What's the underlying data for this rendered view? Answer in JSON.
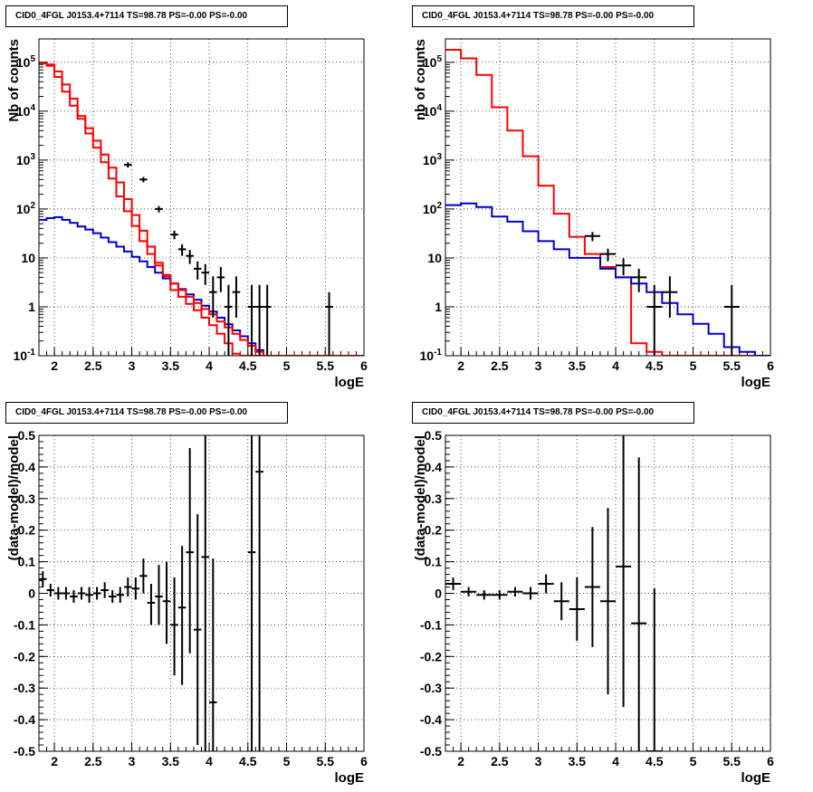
{
  "chart_data": [
    {
      "panel": "top-left",
      "type": "line",
      "title": "CID0_4FGL J0153.4+7114 TS=98.78 PS=-0.00 PS=-0.00",
      "xlabel": "logE",
      "ylabel": "Nb of counts",
      "xlim": [
        1.8,
        6.0
      ],
      "ylim": [
        0.1,
        300000
      ],
      "ylog": true,
      "grid": true,
      "xticks": [
        "2",
        "2.5",
        "3",
        "3.5",
        "4",
        "4.5",
        "5",
        "5.5",
        "6"
      ],
      "yticks": [
        "10^-1",
        "1",
        "10",
        "10^2",
        "10^3",
        "10^4",
        "10^5"
      ],
      "bin_edges": [
        1.8,
        1.9,
        2.0,
        2.1,
        2.2,
        2.3,
        2.4,
        2.5,
        2.6,
        2.7,
        2.8,
        2.9,
        3.0,
        3.1,
        3.2,
        3.3,
        3.4,
        3.5,
        3.6,
        3.7,
        3.8,
        3.9,
        4.0,
        4.1,
        4.2,
        4.3,
        4.4,
        4.5,
        4.6,
        4.7,
        4.8,
        4.9,
        5.0,
        5.1,
        5.2,
        5.3,
        5.4,
        5.5,
        5.6,
        5.7,
        5.8,
        5.9,
        6.0
      ],
      "series": [
        {
          "color": "#ff0000",
          "values": [
            95000,
            90000,
            65000,
            35000,
            18000,
            8000,
            4500,
            2500,
            1300,
            700,
            350,
            160,
            75,
            36,
            17,
            8,
            4.2,
            2.2,
            1.6,
            1.15,
            0.85,
            0.6,
            0.42,
            0.28,
            0.18,
            0.11,
            0.1,
            0.1,
            0.1,
            0.1,
            0.1,
            0.1,
            0.1,
            0.1,
            0.1,
            0.1,
            0.1,
            0.1,
            0.1,
            0.1,
            0.1,
            0.1
          ]
        },
        {
          "color": "#0000cc",
          "values": [
            60,
            65,
            68,
            60,
            52,
            44,
            38,
            32,
            26,
            21,
            17,
            13.5,
            10.5,
            8.5,
            6.5,
            5,
            3.8,
            3,
            2.3,
            1.8,
            1.4,
            1.05,
            0.8,
            0.6,
            0.44,
            0.33,
            0.25,
            0.18,
            0.13,
            0.1,
            0.1,
            0.1,
            0.1,
            0.1,
            0.1,
            0.1,
            0.1,
            0.1,
            0.1,
            0.1,
            0.1,
            0.1
          ]
        },
        {
          "color": "#ff0000",
          "values": [
            95000,
            85000,
            50000,
            25000,
            13000,
            7000,
            3500,
            1800,
            900,
            420,
            180,
            90,
            45,
            22,
            12,
            7,
            4.5,
            3,
            2.2,
            1.6,
            1.2,
            0.9,
            0.7,
            0.5,
            0.38,
            0.28,
            0.21,
            0.16,
            0.12,
            0.1,
            0.1,
            0.1,
            0.1,
            0.1,
            0.1,
            0.1,
            0.1,
            0.1,
            0.1,
            0.1,
            0.1,
            0.1
          ]
        }
      ],
      "points": [
        {
          "x": 2.95,
          "y": 800,
          "xerr": 0.05,
          "ylo": 700,
          "yhi": 900
        },
        {
          "x": 3.15,
          "y": 400,
          "xerr": 0.05,
          "ylo": 350,
          "yhi": 450
        },
        {
          "x": 3.35,
          "y": 100,
          "xerr": 0.05,
          "ylo": 85,
          "yhi": 115
        },
        {
          "x": 3.55,
          "y": 30,
          "xerr": 0.05,
          "ylo": 24,
          "yhi": 36
        },
        {
          "x": 3.65,
          "y": 15,
          "xerr": 0.05,
          "ylo": 11,
          "yhi": 19
        },
        {
          "x": 3.75,
          "y": 11,
          "xerr": 0.05,
          "ylo": 7.5,
          "yhi": 14.5
        },
        {
          "x": 3.85,
          "y": 6,
          "xerr": 0.05,
          "ylo": 3.6,
          "yhi": 8.5
        },
        {
          "x": 3.95,
          "y": 5,
          "xerr": 0.05,
          "ylo": 2.8,
          "yhi": 7.5
        },
        {
          "x": 4.05,
          "y": 2,
          "xerr": 0.05,
          "ylo": 0.6,
          "yhi": 4.2
        },
        {
          "x": 4.15,
          "y": 4,
          "xerr": 0.05,
          "ylo": 2,
          "yhi": 6.5
        },
        {
          "x": 4.25,
          "y": 1,
          "xerr": 0.05,
          "ylo": 0.1,
          "yhi": 2.8
        },
        {
          "x": 4.35,
          "y": 2,
          "xerr": 0.05,
          "ylo": 0.6,
          "yhi": 4.2
        },
        {
          "x": 4.55,
          "y": 1,
          "xerr": 0.05,
          "ylo": 0.1,
          "yhi": 2.8
        },
        {
          "x": 4.65,
          "y": 1,
          "xerr": 0.05,
          "ylo": 0.1,
          "yhi": 2.8
        },
        {
          "x": 4.75,
          "y": 1,
          "xerr": 0.05,
          "ylo": 0.1,
          "yhi": 2.8
        },
        {
          "x": 5.55,
          "y": 1,
          "xerr": 0.05,
          "ylo": 0.1,
          "yhi": 2
        }
      ]
    },
    {
      "panel": "top-right",
      "type": "line",
      "title": "CID0_4FGL J0153.4+7114 TS=98.78 PS=-0.00 PS=-0.00",
      "xlabel": "logE",
      "ylabel": "nb of counts",
      "xlim": [
        1.8,
        6.0
      ],
      "ylim": [
        0.1,
        300000
      ],
      "ylog": true,
      "grid": true,
      "xticks": [
        "2",
        "2.5",
        "3",
        "3.5",
        "4",
        "4.5",
        "5",
        "5.5",
        "6"
      ],
      "yticks": [
        "10^-1",
        "1",
        "10",
        "10^2",
        "10^3",
        "10^4",
        "10^5"
      ],
      "bin_edges": [
        1.8,
        2.0,
        2.2,
        2.4,
        2.6,
        2.8,
        3.0,
        3.2,
        3.4,
        3.6,
        3.8,
        4.0,
        4.2,
        4.4,
        4.6,
        4.8,
        5.0,
        5.2,
        5.4,
        5.6,
        5.8,
        6.0
      ],
      "series": [
        {
          "color": "#ff0000",
          "values": [
            180000,
            120000,
            55000,
            12000,
            4000,
            1200,
            300,
            80,
            27,
            12,
            6.5,
            4,
            0.18,
            0.12,
            0.1,
            0.1,
            0.1,
            0.1,
            0.1,
            0.1,
            0.1
          ]
        },
        {
          "color": "#0000cc",
          "values": [
            120,
            130,
            110,
            70,
            55,
            35,
            22,
            15,
            10,
            10,
            6,
            4,
            3,
            2,
            1.2,
            0.7,
            0.45,
            0.28,
            0.15,
            0.12,
            0.1
          ]
        }
      ],
      "points": [
        {
          "x": 3.7,
          "y": 28,
          "xerr": 0.1,
          "ylo": 22,
          "yhi": 34
        },
        {
          "x": 3.9,
          "y": 12,
          "xerr": 0.1,
          "ylo": 8.5,
          "yhi": 15.5
        },
        {
          "x": 4.1,
          "y": 7,
          "xerr": 0.1,
          "ylo": 4.4,
          "yhi": 9.8
        },
        {
          "x": 4.3,
          "y": 4,
          "xerr": 0.1,
          "ylo": 2,
          "yhi": 6
        },
        {
          "x": 4.5,
          "y": 1,
          "xerr": 0.1,
          "ylo": 0.1,
          "yhi": 2.8
        },
        {
          "x": 4.7,
          "y": 2,
          "xerr": 0.1,
          "ylo": 0.6,
          "yhi": 4.2
        },
        {
          "x": 5.5,
          "y": 1,
          "xerr": 0.1,
          "ylo": 0.1,
          "yhi": 2.8
        }
      ]
    },
    {
      "panel": "bottom-left",
      "type": "scatter",
      "title": "CID0_4FGL J0153.4+7114 TS=98.78 PS=-0.00 PS=-0.00",
      "xlabel": "logE",
      "ylabel": "(data-model)/model",
      "xlim": [
        1.8,
        6.0
      ],
      "ylim": [
        -0.5,
        0.5
      ],
      "grid": true,
      "xticks": [
        "2",
        "2.5",
        "3",
        "3.5",
        "4",
        "4.5",
        "5",
        "5.5",
        "6"
      ],
      "yticks": [
        "-0.5",
        "-0.4",
        "-0.3",
        "-0.2",
        "-0.1",
        "0",
        "0.1",
        "0.2",
        "0.3",
        "0.4",
        "0.5"
      ],
      "points": [
        {
          "x": 1.85,
          "y": 0.045,
          "xerr": 0.05,
          "ylo": 0.02,
          "yhi": 0.07
        },
        {
          "x": 1.95,
          "y": 0.01,
          "xerr": 0.05,
          "ylo": -0.01,
          "yhi": 0.03
        },
        {
          "x": 2.05,
          "y": 0.0,
          "xerr": 0.05,
          "ylo": -0.02,
          "yhi": 0.02
        },
        {
          "x": 2.15,
          "y": 0.0,
          "xerr": 0.05,
          "ylo": -0.02,
          "yhi": 0.02
        },
        {
          "x": 2.25,
          "y": -0.01,
          "xerr": 0.05,
          "ylo": -0.03,
          "yhi": 0.01
        },
        {
          "x": 2.35,
          "y": 0.0,
          "xerr": 0.05,
          "ylo": -0.02,
          "yhi": 0.02
        },
        {
          "x": 2.45,
          "y": -0.005,
          "xerr": 0.05,
          "ylo": -0.03,
          "yhi": 0.02
        },
        {
          "x": 2.55,
          "y": 0.0,
          "xerr": 0.05,
          "ylo": -0.02,
          "yhi": 0.02
        },
        {
          "x": 2.65,
          "y": 0.01,
          "xerr": 0.05,
          "ylo": -0.015,
          "yhi": 0.035
        },
        {
          "x": 2.75,
          "y": -0.01,
          "xerr": 0.05,
          "ylo": -0.03,
          "yhi": 0.01
        },
        {
          "x": 2.85,
          "y": -0.005,
          "xerr": 0.05,
          "ylo": -0.03,
          "yhi": 0.02
        },
        {
          "x": 2.95,
          "y": 0.02,
          "xerr": 0.05,
          "ylo": -0.01,
          "yhi": 0.05
        },
        {
          "x": 3.05,
          "y": 0.015,
          "xerr": 0.05,
          "ylo": -0.02,
          "yhi": 0.05
        },
        {
          "x": 3.15,
          "y": 0.055,
          "xerr": 0.05,
          "ylo": 0.0,
          "yhi": 0.11
        },
        {
          "x": 3.25,
          "y": -0.03,
          "xerr": 0.05,
          "ylo": -0.1,
          "yhi": 0.03
        },
        {
          "x": 3.35,
          "y": -0.01,
          "xerr": 0.05,
          "ylo": -0.1,
          "yhi": 0.09
        },
        {
          "x": 3.45,
          "y": -0.025,
          "xerr": 0.05,
          "ylo": -0.16,
          "yhi": 0.1
        },
        {
          "x": 3.55,
          "y": -0.1,
          "xerr": 0.05,
          "ylo": -0.26,
          "yhi": 0.05
        },
        {
          "x": 3.65,
          "y": -0.045,
          "xerr": 0.05,
          "ylo": -0.29,
          "yhi": 0.15
        },
        {
          "x": 3.75,
          "y": 0.13,
          "xerr": 0.05,
          "ylo": -0.19,
          "yhi": 0.46
        },
        {
          "x": 3.85,
          "y": -0.115,
          "xerr": 0.05,
          "ylo": -0.48,
          "yhi": 0.25
        },
        {
          "x": 3.95,
          "y": 0.115,
          "xerr": 0.05,
          "ylo": -0.5,
          "yhi": 0.5
        },
        {
          "x": 4.05,
          "y": -0.345,
          "xerr": 0.05,
          "ylo": -0.5,
          "yhi": 0.11
        },
        {
          "x": 4.55,
          "y": 0.13,
          "xerr": 0.05,
          "ylo": -0.5,
          "yhi": 0.5
        },
        {
          "x": 4.65,
          "y": 0.385,
          "xerr": 0.05,
          "ylo": -0.5,
          "yhi": 0.5
        }
      ]
    },
    {
      "panel": "bottom-right",
      "type": "scatter",
      "title": "CID0_4FGL J0153.4+7114 TS=98.78 PS=-0.00 PS=-0.00",
      "xlabel": "logE",
      "ylabel": "(data-model)/model",
      "xlim": [
        1.8,
        6.0
      ],
      "ylim": [
        -0.5,
        0.5
      ],
      "grid": true,
      "xticks": [
        "2",
        "2.5",
        "3",
        "3.5",
        "4",
        "4.5",
        "5",
        "5.5",
        "6"
      ],
      "yticks": [
        "-0.5",
        "-0.4",
        "-0.3",
        "-0.2",
        "-0.1",
        "0",
        "0.1",
        "0.2",
        "0.3",
        "0.4",
        "0.5"
      ],
      "points": [
        {
          "x": 1.9,
          "y": 0.03,
          "xerr": 0.1,
          "ylo": 0.01,
          "yhi": 0.05
        },
        {
          "x": 2.1,
          "y": 0.005,
          "xerr": 0.1,
          "ylo": -0.01,
          "yhi": 0.02
        },
        {
          "x": 2.3,
          "y": -0.005,
          "xerr": 0.1,
          "ylo": -0.02,
          "yhi": 0.01
        },
        {
          "x": 2.5,
          "y": -0.005,
          "xerr": 0.1,
          "ylo": -0.02,
          "yhi": 0.01
        },
        {
          "x": 2.7,
          "y": 0.005,
          "xerr": 0.1,
          "ylo": -0.01,
          "yhi": 0.02
        },
        {
          "x": 2.9,
          "y": 0.0,
          "xerr": 0.1,
          "ylo": -0.02,
          "yhi": 0.02
        },
        {
          "x": 3.1,
          "y": 0.03,
          "xerr": 0.1,
          "ylo": 0.0,
          "yhi": 0.06
        },
        {
          "x": 3.3,
          "y": -0.025,
          "xerr": 0.1,
          "ylo": -0.085,
          "yhi": 0.035
        },
        {
          "x": 3.5,
          "y": -0.05,
          "xerr": 0.1,
          "ylo": -0.15,
          "yhi": 0.05
        },
        {
          "x": 3.7,
          "y": 0.02,
          "xerr": 0.1,
          "ylo": -0.17,
          "yhi": 0.21
        },
        {
          "x": 3.9,
          "y": -0.025,
          "xerr": 0.1,
          "ylo": -0.32,
          "yhi": 0.27
        },
        {
          "x": 4.1,
          "y": 0.085,
          "xerr": 0.1,
          "ylo": -0.36,
          "yhi": 0.5
        },
        {
          "x": 4.3,
          "y": -0.095,
          "xerr": 0.1,
          "ylo": -0.5,
          "yhi": 0.43
        },
        {
          "x": 4.5,
          "y": -0.5,
          "xerr": 0.1,
          "ylo": -0.5,
          "yhi": 0.015
        }
      ]
    }
  ]
}
